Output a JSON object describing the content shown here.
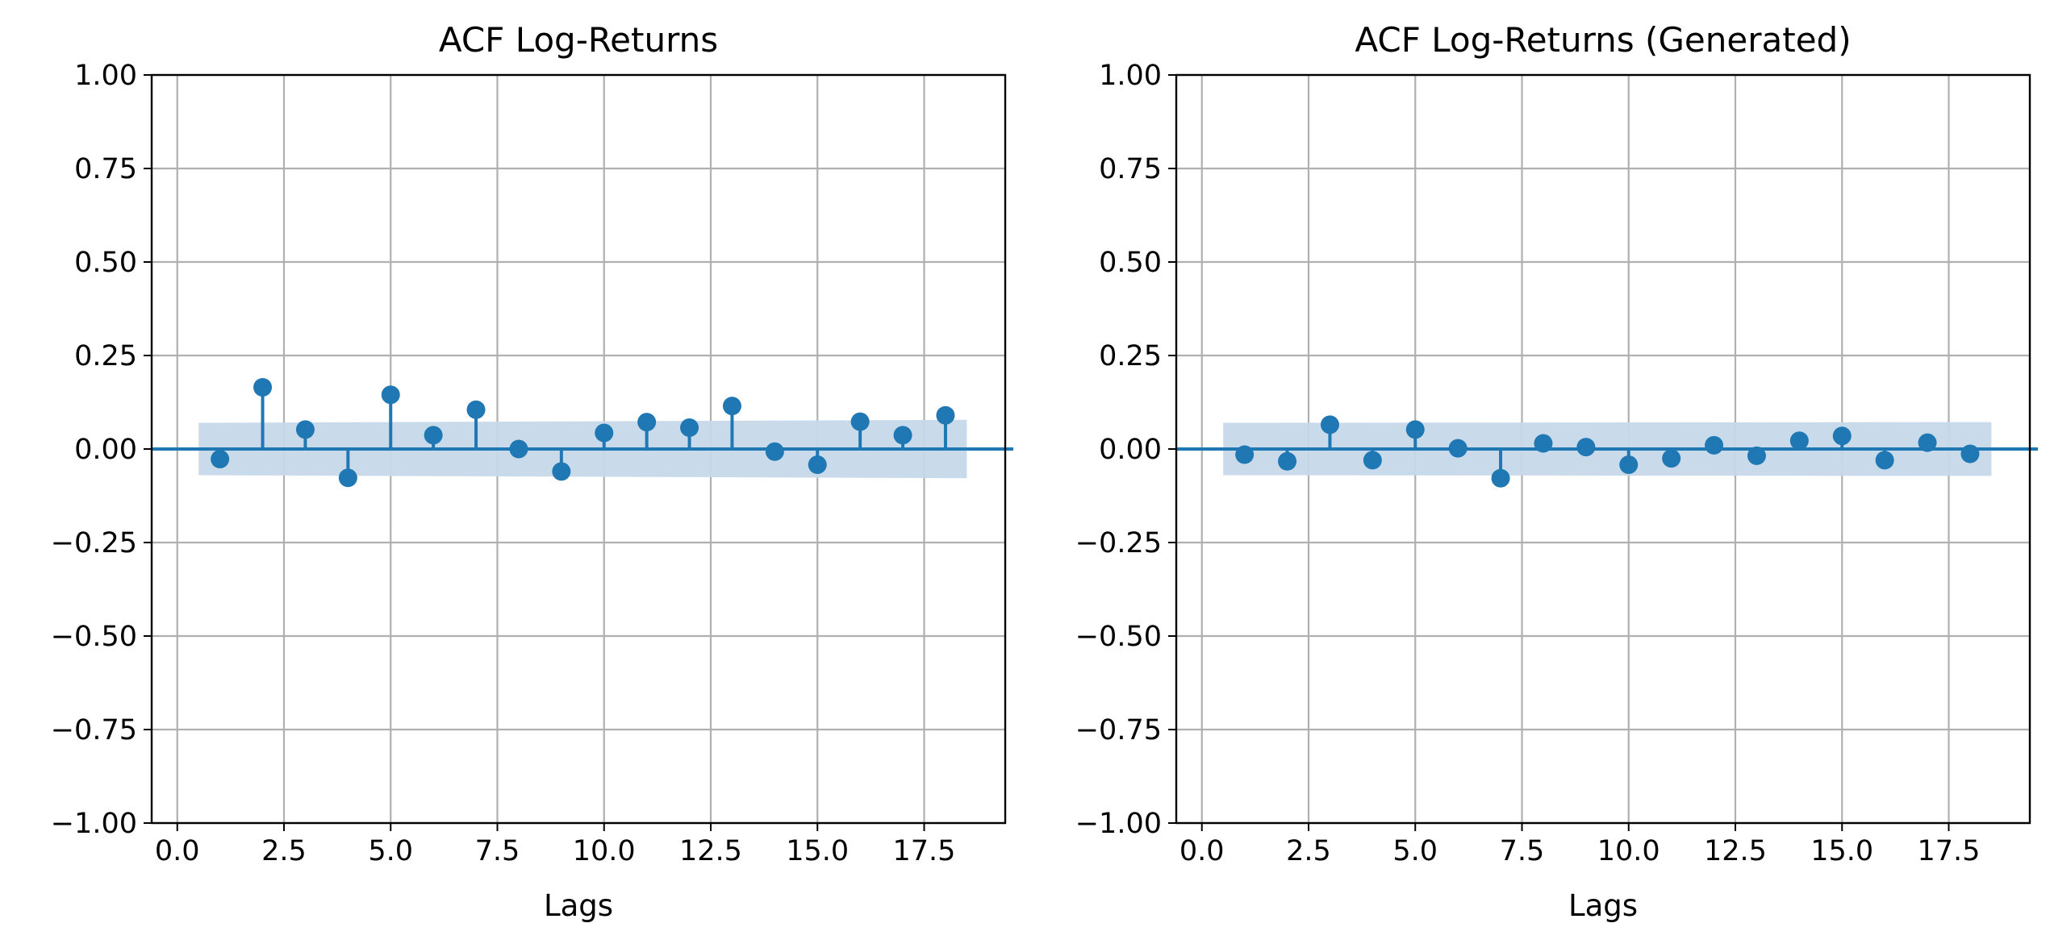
{
  "chart_data": [
    {
      "type": "stem",
      "title": "ACF Log-Returns",
      "xlabel": "Lags",
      "ylabel": "",
      "xlim": [
        -0.6,
        19.4
      ],
      "ylim": [
        -1.0,
        1.0
      ],
      "xticks": [
        0.0,
        2.5,
        5.0,
        7.5,
        10.0,
        12.5,
        15.0,
        17.5
      ],
      "xtick_labels": [
        "0.0",
        "2.5",
        "5.0",
        "7.5",
        "10.0",
        "12.5",
        "15.0",
        "17.5"
      ],
      "yticks": [
        -1.0,
        -0.75,
        -0.5,
        -0.25,
        0.0,
        0.25,
        0.5,
        0.75,
        1.0
      ],
      "ytick_labels": [
        "−1.00",
        "−0.75",
        "−0.50",
        "−0.25",
        "0.00",
        "0.25",
        "0.50",
        "0.75",
        "1.00"
      ],
      "grid": true,
      "lags": [
        1,
        2,
        3,
        4,
        5,
        6,
        7,
        8,
        9,
        10,
        11,
        12,
        13,
        14,
        15,
        16,
        17,
        18
      ],
      "values": [
        -0.027,
        0.165,
        0.052,
        -0.077,
        0.145,
        0.037,
        0.105,
        0.0,
        -0.06,
        0.043,
        0.072,
        0.057,
        0.115,
        -0.007,
        -0.042,
        0.073,
        0.037,
        0.09
      ],
      "confidence_band": {
        "x": [
          0.5,
          18.5
        ],
        "upper": [
          0.07,
          0.078
        ],
        "lower": [
          -0.07,
          -0.078
        ]
      },
      "colors": {
        "stem": "#1f77b4",
        "band": "#c6d9ea",
        "grid": "#b0b0b0"
      }
    },
    {
      "type": "stem",
      "title": "ACF Log-Returns (Generated)",
      "xlabel": "Lags",
      "ylabel": "",
      "xlim": [
        -0.6,
        19.4
      ],
      "ylim": [
        -1.0,
        1.0
      ],
      "xticks": [
        0.0,
        2.5,
        5.0,
        7.5,
        10.0,
        12.5,
        15.0,
        17.5
      ],
      "xtick_labels": [
        "0.0",
        "2.5",
        "5.0",
        "7.5",
        "10.0",
        "12.5",
        "15.0",
        "17.5"
      ],
      "yticks": [
        -1.0,
        -0.75,
        -0.5,
        -0.25,
        0.0,
        0.25,
        0.5,
        0.75,
        1.0
      ],
      "ytick_labels": [
        "−1.00",
        "−0.75",
        "−0.50",
        "−0.25",
        "0.00",
        "0.25",
        "0.50",
        "0.75",
        "1.00"
      ],
      "grid": true,
      "lags": [
        1,
        2,
        3,
        4,
        5,
        6,
        7,
        8,
        9,
        10,
        11,
        12,
        13,
        14,
        15,
        16,
        17,
        18
      ],
      "values": [
        -0.015,
        -0.033,
        0.065,
        -0.03,
        0.052,
        0.002,
        -0.078,
        0.015,
        0.005,
        -0.042,
        -0.025,
        0.01,
        -0.018,
        0.022,
        0.035,
        -0.03,
        0.017,
        -0.013
      ],
      "confidence_band": {
        "x": [
          0.5,
          18.5
        ],
        "upper": [
          0.07,
          0.072
        ],
        "lower": [
          -0.07,
          -0.072
        ]
      },
      "colors": {
        "stem": "#1f77b4",
        "band": "#c6d9ea",
        "grid": "#b0b0b0"
      }
    }
  ]
}
